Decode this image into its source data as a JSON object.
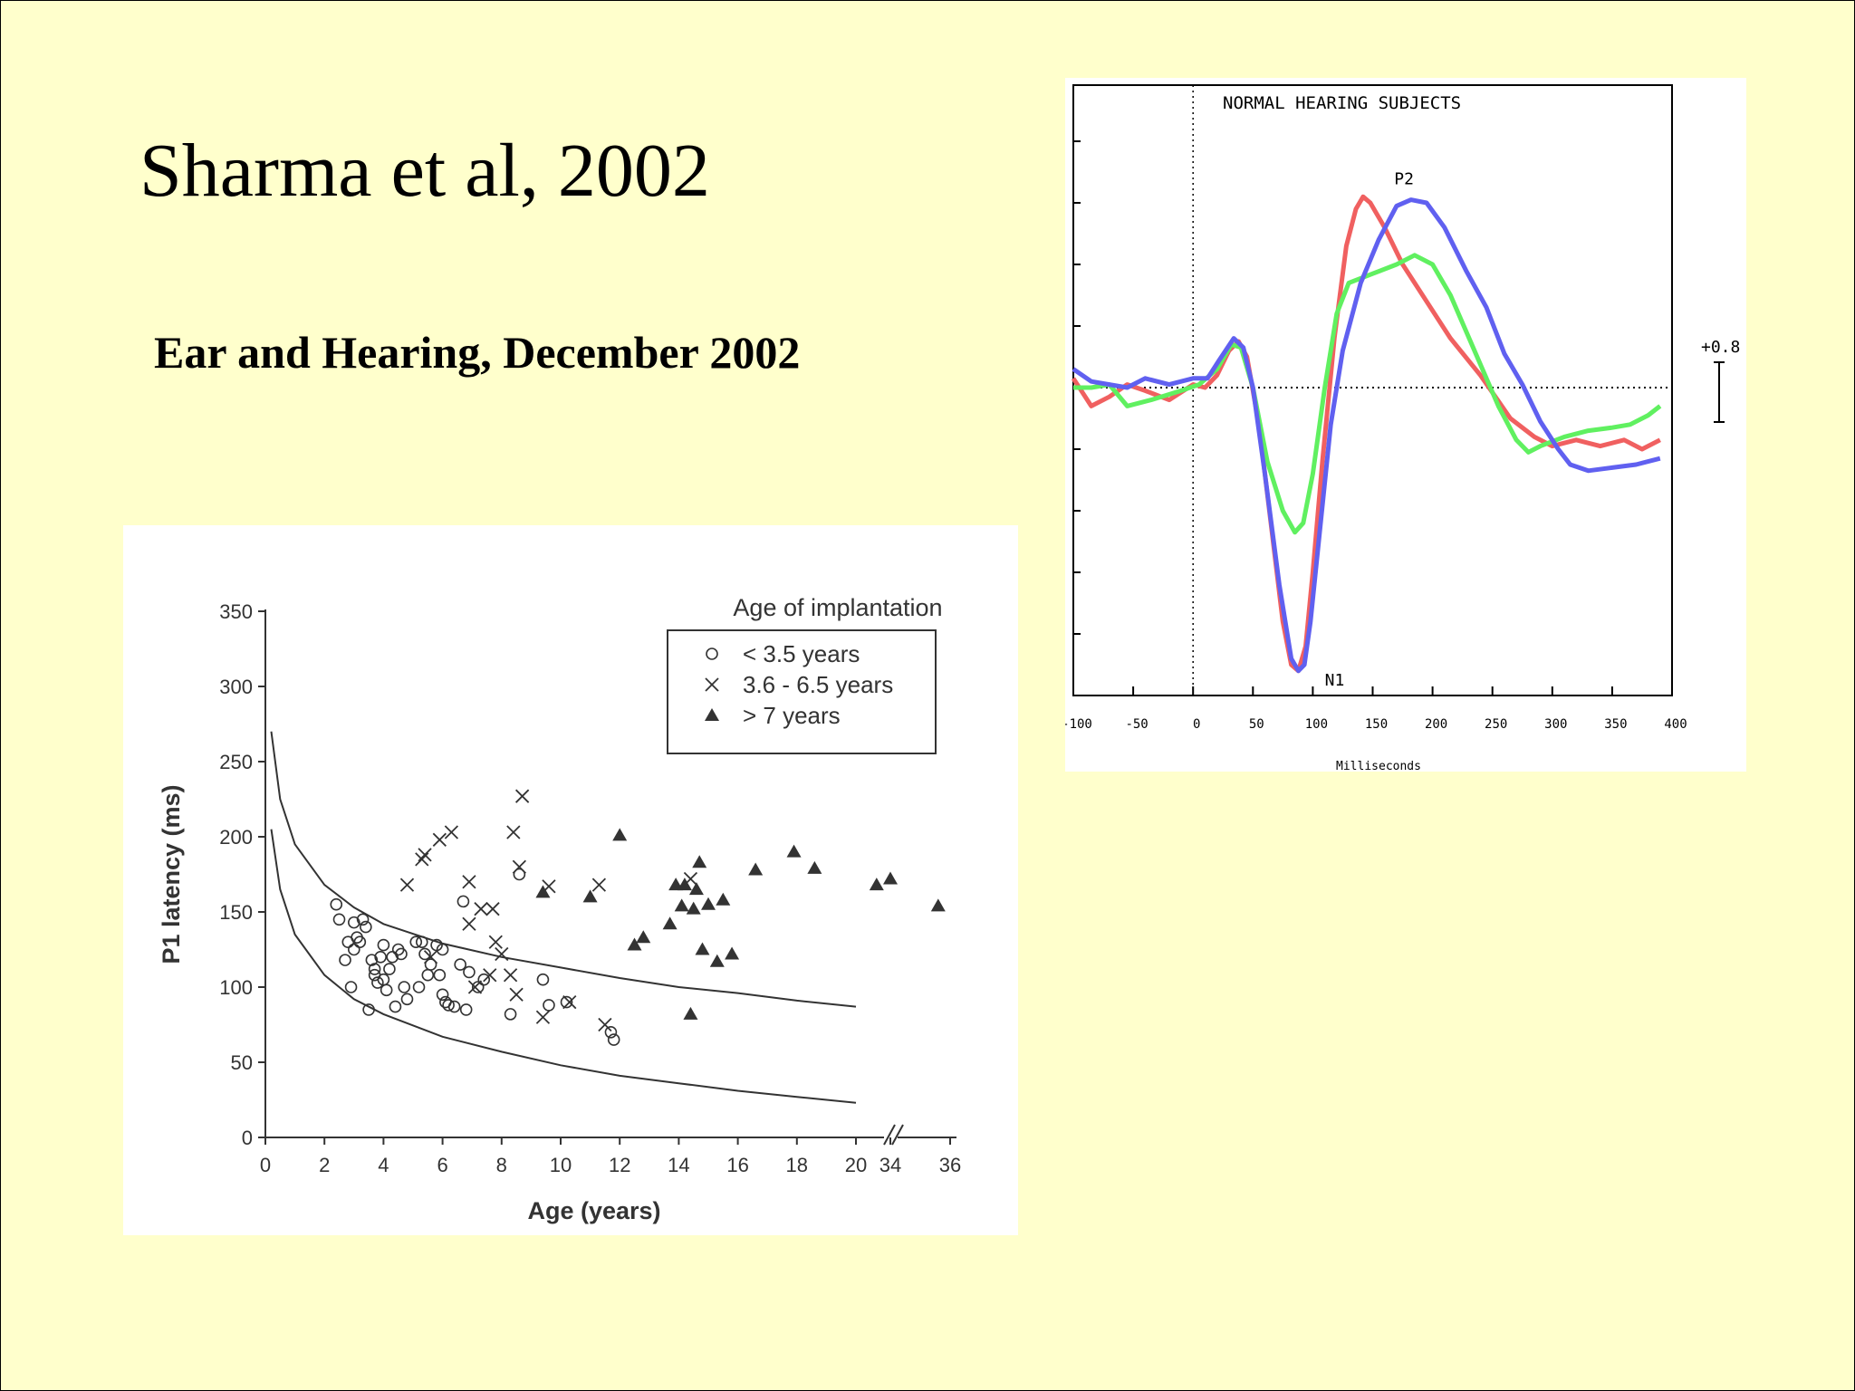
{
  "slide": {
    "title": "Sharma et al, 2002",
    "subtitle": "Ear and Hearing, December 2002",
    "background": "#ffffcc"
  },
  "chart_data": [
    {
      "type": "scatter",
      "xlabel": "Age (years)",
      "ylabel": "P1 latency (ms)",
      "ylim": [
        0,
        350
      ],
      "y_ticks": [
        0,
        50,
        100,
        150,
        200,
        250,
        300,
        350
      ],
      "x_ticks": [
        "0",
        "2",
        "4",
        "6",
        "8",
        "10",
        "12",
        "14",
        "16",
        "18",
        "20",
        "34",
        "36"
      ],
      "axis_break": "between 20 and 34",
      "grid": false,
      "legend": {
        "title": "Age of implantation",
        "placement": "top-right",
        "entries": [
          "< 3.5 years",
          "3.6 - 6.5 years",
          "> 7 years"
        ]
      },
      "series": [
        {
          "name": "< 3.5 years",
          "marker": "circle",
          "points": [
            [
              2.4,
              155
            ],
            [
              2.5,
              145
            ],
            [
              2.7,
              118
            ],
            [
              2.8,
              130
            ],
            [
              2.9,
              100
            ],
            [
              3.0,
              125
            ],
            [
              3.0,
              143
            ],
            [
              3.1,
              133
            ],
            [
              3.2,
              130
            ],
            [
              3.3,
              145
            ],
            [
              3.4,
              140
            ],
            [
              3.5,
              85
            ],
            [
              3.6,
              118
            ],
            [
              3.7,
              108
            ],
            [
              3.7,
              112
            ],
            [
              3.8,
              103
            ],
            [
              3.9,
              120
            ],
            [
              4.0,
              105
            ],
            [
              4.0,
              128
            ],
            [
              4.1,
              98
            ],
            [
              4.2,
              112
            ],
            [
              4.3,
              120
            ],
            [
              4.4,
              87
            ],
            [
              4.5,
              125
            ],
            [
              4.6,
              122
            ],
            [
              4.7,
              100
            ],
            [
              4.8,
              92
            ],
            [
              5.1,
              130
            ],
            [
              5.2,
              100
            ],
            [
              5.3,
              130
            ],
            [
              5.4,
              122
            ],
            [
              5.5,
              108
            ],
            [
              5.6,
              115
            ],
            [
              5.8,
              128
            ],
            [
              5.9,
              108
            ],
            [
              6.0,
              95
            ],
            [
              6.0,
              125
            ],
            [
              6.1,
              90
            ],
            [
              6.2,
              88
            ],
            [
              6.4,
              87
            ],
            [
              6.6,
              115
            ],
            [
              6.7,
              157
            ],
            [
              6.8,
              85
            ],
            [
              6.9,
              110
            ],
            [
              7.2,
              100
            ],
            [
              7.4,
              105
            ],
            [
              8.3,
              82
            ],
            [
              8.6,
              175
            ],
            [
              9.4,
              105
            ],
            [
              9.6,
              88
            ],
            [
              10.2,
              90
            ],
            [
              11.7,
              70
            ],
            [
              11.8,
              65
            ]
          ]
        },
        {
          "name": "3.6 - 6.5 years",
          "marker": "x",
          "points": [
            [
              4.8,
              168
            ],
            [
              5.3,
              185
            ],
            [
              5.4,
              188
            ],
            [
              5.6,
              120
            ],
            [
              5.9,
              198
            ],
            [
              6.3,
              203
            ],
            [
              6.9,
              170
            ],
            [
              6.9,
              142
            ],
            [
              7.1,
              100
            ],
            [
              7.3,
              152
            ],
            [
              7.6,
              108
            ],
            [
              7.7,
              152
            ],
            [
              7.8,
              130
            ],
            [
              8.0,
              122
            ],
            [
              8.3,
              108
            ],
            [
              8.4,
              203
            ],
            [
              8.5,
              95
            ],
            [
              8.6,
              180
            ],
            [
              8.7,
              227
            ],
            [
              9.4,
              80
            ],
            [
              9.6,
              167
            ],
            [
              10.3,
              90
            ],
            [
              11.3,
              168
            ],
            [
              11.5,
              75
            ],
            [
              14.4,
              172
            ]
          ]
        },
        {
          "name": "> 7 years",
          "marker": "triangle",
          "points": [
            [
              9.4,
              163
            ],
            [
              11.0,
              160
            ],
            [
              12.0,
              201
            ],
            [
              12.5,
              128
            ],
            [
              12.8,
              133
            ],
            [
              13.7,
              142
            ],
            [
              13.9,
              168
            ],
            [
              14.1,
              154
            ],
            [
              14.2,
              168
            ],
            [
              14.4,
              82
            ],
            [
              14.5,
              152
            ],
            [
              14.6,
              165
            ],
            [
              14.7,
              183
            ],
            [
              14.8,
              125
            ],
            [
              15.0,
              155
            ],
            [
              15.3,
              117
            ],
            [
              15.5,
              158
            ],
            [
              15.8,
              122
            ],
            [
              16.6,
              178
            ],
            [
              17.9,
              190
            ],
            [
              18.6,
              179
            ],
            [
              20.7,
              168
            ],
            [
              34.0,
              172
            ],
            [
              35.6,
              154
            ]
          ]
        }
      ],
      "curves": [
        {
          "name": "",
          "points": [
            [
              0.2,
              270
            ],
            [
              0.5,
              225
            ],
            [
              1,
              195
            ],
            [
              2,
              168
            ],
            [
              3,
              153
            ],
            [
              4,
              142
            ],
            [
              6,
              129
            ],
            [
              8,
              120
            ],
            [
              10,
              113
            ],
            [
              12,
              106
            ],
            [
              14,
              100
            ],
            [
              16,
              96
            ],
            [
              18,
              91
            ],
            [
              20,
              87
            ]
          ]
        },
        {
          "name": "",
          "points": [
            [
              0.2,
              205
            ],
            [
              0.5,
              165
            ],
            [
              1,
              135
            ],
            [
              2,
              108
            ],
            [
              3,
              92
            ],
            [
              4,
              82
            ],
            [
              6,
              67
            ],
            [
              8,
              57
            ],
            [
              10,
              48
            ],
            [
              12,
              41
            ],
            [
              14,
              36
            ],
            [
              16,
              31
            ],
            [
              18,
              27
            ],
            [
              20,
              23
            ]
          ]
        }
      ]
    },
    {
      "type": "line",
      "title": "NORMAL HEARING SUBJECTS",
      "xlabel": "Milliseconds",
      "xlim": [
        -100,
        400
      ],
      "x_ticks": [
        "-100",
        "-50",
        "0",
        "50",
        "100",
        "150",
        "200",
        "250",
        "300",
        "350",
        "400"
      ],
      "scale_label": "+0.8",
      "annotations": [
        {
          "text": "P2",
          "x": 168,
          "y": 3.3
        },
        {
          "text": "N1",
          "x": 110,
          "y": -4.4
        }
      ],
      "series": [
        {
          "name": "",
          "color": "#f06060",
          "points": [
            [
              -100,
              0.15
            ],
            [
              -85,
              -0.3
            ],
            [
              -70,
              -0.15
            ],
            [
              -55,
              0.05
            ],
            [
              -40,
              -0.05
            ],
            [
              -20,
              -0.2
            ],
            [
              0,
              0.05
            ],
            [
              10,
              0
            ],
            [
              20,
              0.2
            ],
            [
              30,
              0.6
            ],
            [
              38,
              0.75
            ],
            [
              45,
              0.5
            ],
            [
              55,
              -0.6
            ],
            [
              65,
              -2.2
            ],
            [
              75,
              -3.8
            ],
            [
              82,
              -4.5
            ],
            [
              88,
              -4.6
            ],
            [
              94,
              -4.2
            ],
            [
              100,
              -3.0
            ],
            [
              108,
              -1.2
            ],
            [
              118,
              0.8
            ],
            [
              128,
              2.3
            ],
            [
              136,
              2.9
            ],
            [
              142,
              3.1
            ],
            [
              148,
              3.0
            ],
            [
              160,
              2.6
            ],
            [
              175,
              2.0
            ],
            [
              195,
              1.4
            ],
            [
              215,
              0.8
            ],
            [
              240,
              0.2
            ],
            [
              265,
              -0.5
            ],
            [
              285,
              -0.8
            ],
            [
              300,
              -0.95
            ],
            [
              320,
              -0.85
            ],
            [
              340,
              -0.95
            ],
            [
              360,
              -0.85
            ],
            [
              375,
              -1.0
            ],
            [
              390,
              -0.85
            ]
          ]
        },
        {
          "name": "",
          "color": "#60f060",
          "points": [
            [
              -100,
              0.0
            ],
            [
              -85,
              0.0
            ],
            [
              -70,
              0.05
            ],
            [
              -55,
              -0.3
            ],
            [
              -35,
              -0.2
            ],
            [
              -10,
              -0.05
            ],
            [
              5,
              0.05
            ],
            [
              20,
              0.3
            ],
            [
              32,
              0.7
            ],
            [
              40,
              0.65
            ],
            [
              50,
              0.0
            ],
            [
              62,
              -1.2
            ],
            [
              75,
              -2.0
            ],
            [
              85,
              -2.35
            ],
            [
              92,
              -2.2
            ],
            [
              100,
              -1.4
            ],
            [
              110,
              0.0
            ],
            [
              120,
              1.2
            ],
            [
              130,
              1.7
            ],
            [
              150,
              1.85
            ],
            [
              170,
              2.0
            ],
            [
              185,
              2.15
            ],
            [
              200,
              2.0
            ],
            [
              215,
              1.5
            ],
            [
              235,
              0.6
            ],
            [
              255,
              -0.3
            ],
            [
              270,
              -0.85
            ],
            [
              280,
              -1.05
            ],
            [
              290,
              -0.95
            ],
            [
              310,
              -0.8
            ],
            [
              330,
              -0.7
            ],
            [
              350,
              -0.65
            ],
            [
              365,
              -0.6
            ],
            [
              380,
              -0.45
            ],
            [
              390,
              -0.3
            ]
          ]
        },
        {
          "name": "",
          "color": "#6060f0",
          "points": [
            [
              -100,
              0.3
            ],
            [
              -85,
              0.1
            ],
            [
              -70,
              0.05
            ],
            [
              -55,
              0.0
            ],
            [
              -40,
              0.15
            ],
            [
              -20,
              0.05
            ],
            [
              0,
              0.15
            ],
            [
              12,
              0.15
            ],
            [
              22,
              0.45
            ],
            [
              34,
              0.8
            ],
            [
              42,
              0.65
            ],
            [
              50,
              0.0
            ],
            [
              60,
              -1.4
            ],
            [
              72,
              -3.2
            ],
            [
              82,
              -4.4
            ],
            [
              88,
              -4.6
            ],
            [
              93,
              -4.5
            ],
            [
              98,
              -3.8
            ],
            [
              106,
              -2.3
            ],
            [
              115,
              -0.6
            ],
            [
              125,
              0.6
            ],
            [
              140,
              1.7
            ],
            [
              155,
              2.4
            ],
            [
              170,
              2.95
            ],
            [
              182,
              3.05
            ],
            [
              195,
              3.0
            ],
            [
              210,
              2.6
            ],
            [
              228,
              1.9
            ],
            [
              245,
              1.3
            ],
            [
              260,
              0.55
            ],
            [
              275,
              0.05
            ],
            [
              290,
              -0.55
            ],
            [
              305,
              -1.0
            ],
            [
              315,
              -1.25
            ],
            [
              330,
              -1.35
            ],
            [
              350,
              -1.3
            ],
            [
              370,
              -1.25
            ],
            [
              390,
              -1.15
            ]
          ]
        }
      ]
    }
  ]
}
